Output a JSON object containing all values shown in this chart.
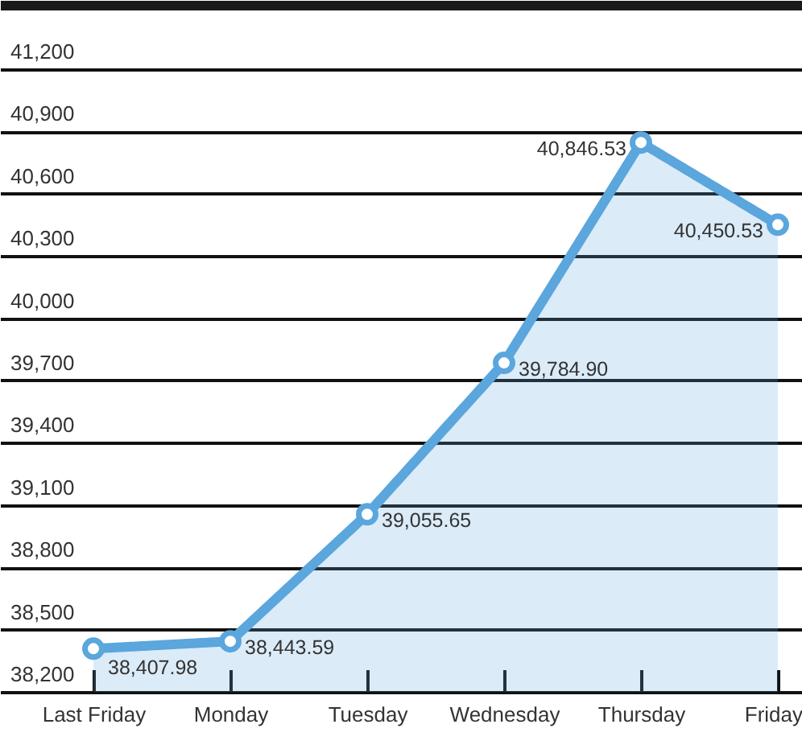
{
  "chart_data": {
    "type": "area",
    "categories": [
      "Last Friday",
      "Monday",
      "Tuesday",
      "Wednesday",
      "Thursday",
      "Friday"
    ],
    "values": [
      38407.98,
      38443.59,
      39055.65,
      39784.9,
      40846.53,
      40450.53
    ],
    "value_labels": [
      "38,407.98",
      "38,443.59",
      "39,055.65",
      "39,784.90",
      "40,846.53",
      "40,450.53"
    ],
    "color": "#5aa6dd",
    "ylim": [
      38200,
      41510
    ],
    "yticks": [
      {
        "value": 38200,
        "label": "38,200"
      },
      {
        "value": 38500,
        "label": "38,500"
      },
      {
        "value": 38800,
        "label": "38,800"
      },
      {
        "value": 39100,
        "label": "39,100"
      },
      {
        "value": 39400,
        "label": "39,400"
      },
      {
        "value": 39700,
        "label": "39,700"
      },
      {
        "value": 40000,
        "label": "40,000"
      },
      {
        "value": 40300,
        "label": "40,300"
      },
      {
        "value": 40600,
        "label": "40,600"
      },
      {
        "value": 40900,
        "label": "40,900"
      },
      {
        "value": 41200,
        "label": "41,200"
      }
    ],
    "grid": "y",
    "marker": "circle",
    "line_style": "solid"
  }
}
